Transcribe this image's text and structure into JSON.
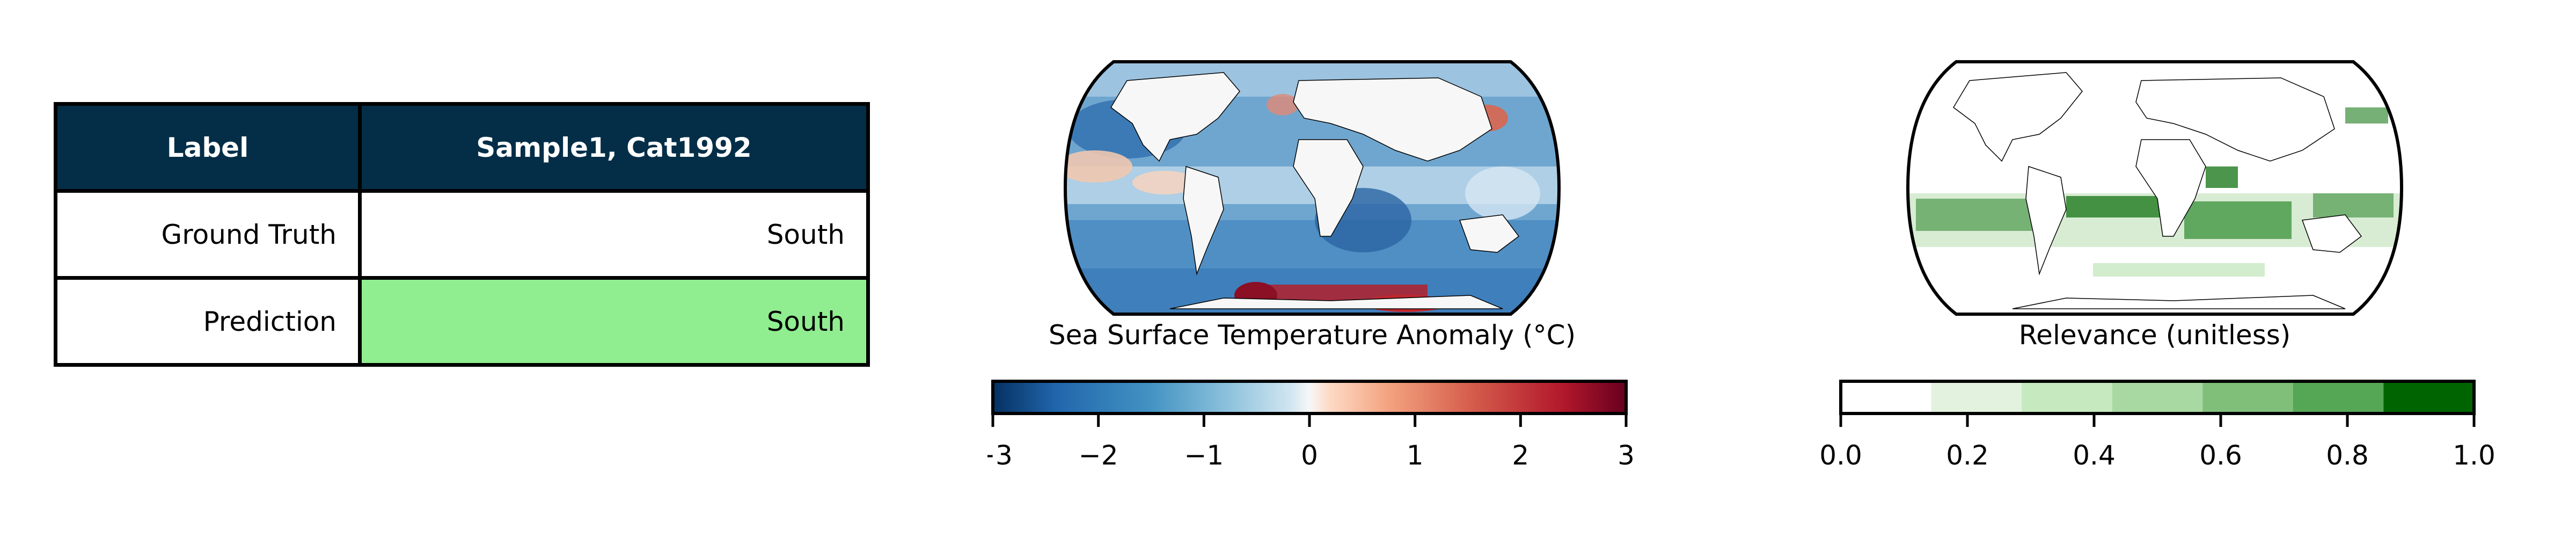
{
  "table": {
    "headers": [
      "Label",
      "Sample1, Cat1992"
    ],
    "rows": [
      {
        "label": "Ground Truth",
        "value": "South"
      },
      {
        "label": "Prediction",
        "value": "South"
      }
    ],
    "colors": {
      "header_bg": "#042e47",
      "match_bg": "#90ee90"
    }
  },
  "chart_data": [
    {
      "type": "heatmap",
      "projection": "robinson",
      "title": "Sea Surface Temperature Anomaly (°C)",
      "colormap": "RdBu_r",
      "vmin": -3,
      "vmax": 3,
      "colorbar_ticks": [
        -3,
        -2,
        -1,
        0,
        1,
        2,
        3
      ],
      "colorbar_tick_labels": [
        "−3",
        "−2",
        "−1",
        "0",
        "1",
        "2",
        "3"
      ]
    },
    {
      "type": "heatmap",
      "projection": "robinson",
      "title": "Relevance (unitless)",
      "colormap": "Greens (discrete, 7 levels)",
      "vmin": 0.0,
      "vmax": 1.0,
      "levels": 7,
      "colorbar_ticks": [
        0.0,
        0.2,
        0.4,
        0.6,
        0.8,
        1.0
      ],
      "colorbar_tick_labels": [
        "0.0",
        "0.2",
        "0.4",
        "0.6",
        "0.8",
        "1.0"
      ],
      "level_colors": [
        "#ffffff",
        "#e2f2df",
        "#c7e9c0",
        "#a9d9a2",
        "#7fbf7a",
        "#55a655",
        "#006400"
      ]
    }
  ]
}
